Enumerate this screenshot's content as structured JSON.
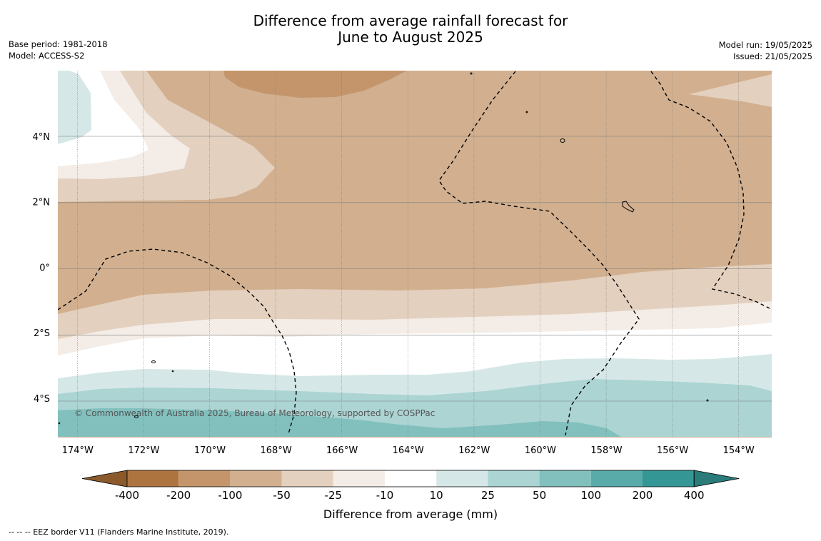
{
  "title": {
    "line1": "Difference from average rainfall forecast for",
    "line2": "June to August 2025"
  },
  "meta_left": {
    "base_period": "Base period: 1981-2018",
    "model": "Model: ACCESS-S2"
  },
  "meta_right": {
    "model_run": "Model run: 19/05/2025",
    "issued": "Issued: 21/05/2025"
  },
  "map": {
    "longitude_range": [
      -174.6,
      -153.0
    ],
    "latitude_range": [
      -5.2,
      6.0
    ],
    "lon_ticks": [
      {
        "value": -174,
        "label": "174°W"
      },
      {
        "value": -172,
        "label": "172°W"
      },
      {
        "value": -170,
        "label": "170°W"
      },
      {
        "value": -168,
        "label": "168°W"
      },
      {
        "value": -166,
        "label": "166°W"
      },
      {
        "value": -164,
        "label": "164°W"
      },
      {
        "value": -162,
        "label": "162°W"
      },
      {
        "value": -160,
        "label": "160°W"
      },
      {
        "value": -158,
        "label": "158°W"
      },
      {
        "value": -156,
        "label": "156°W"
      },
      {
        "value": -154,
        "label": "154°W"
      }
    ],
    "lat_ticks": [
      {
        "value": 4,
        "label": "4°N"
      },
      {
        "value": 2,
        "label": "2°N"
      },
      {
        "value": 0,
        "label": "0°"
      },
      {
        "value": -2,
        "label": "2°S"
      },
      {
        "value": -4,
        "label": "4°S"
      }
    ],
    "copyright": "© Commonwealth of Australia 2025, Bureau of Meteorology, supported by COSPPac",
    "eez_border_style": "dashed"
  },
  "colorbar": {
    "title": "Difference from average (mm)",
    "tick_labels": [
      "-400",
      "-200",
      "-100",
      "-50",
      "-25",
      "-10",
      "10",
      "25",
      "50",
      "100",
      "200",
      "400"
    ],
    "colors": [
      "#8b5a2b",
      "#ae7440",
      "#c4956b",
      "#d2b08f",
      "#e3d0bf",
      "#f4ece6",
      "#ffffff",
      "#d5e8e7",
      "#abd4d3",
      "#82c0be",
      "#59aba9",
      "#349795",
      "#2a7b79"
    ]
  },
  "footer": {
    "legend_text": "--  --  -- EEZ border V11 (Flanders Marine Institute, 2019)."
  }
}
